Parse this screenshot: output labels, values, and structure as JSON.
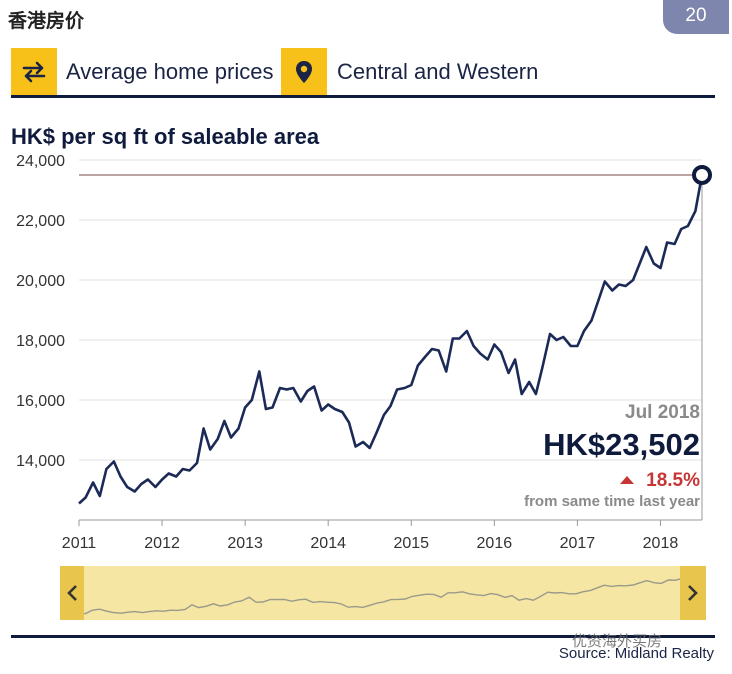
{
  "header": {
    "title": "香港房价",
    "page_number": "20"
  },
  "selectors": {
    "metric": {
      "label": "Average home prices",
      "icon": "swap-arrows-icon"
    },
    "district": {
      "label": "Central and Western",
      "icon": "map-pin-icon"
    }
  },
  "chart_title": "HK$ per sq ft of saleable area",
  "summary": {
    "date": "Jul 2018",
    "value": "HK$23,502",
    "change": "18.5%",
    "change_note": "from same time last year"
  },
  "source": "Source: Midland Realty",
  "watermark": "优资海外买房",
  "colors": {
    "line": "#1b2a57",
    "accent": "#f7c11a",
    "up_change": "#c73535",
    "navigator_bg": "#f5e6a4",
    "badge": "#7e86ad"
  },
  "chart_data": {
    "type": "line",
    "title": "HK$ per sq ft of saleable area",
    "xlabel": "",
    "ylabel": "",
    "x_ticks": [
      "2011",
      "2012",
      "2013",
      "2014",
      "2015",
      "2016",
      "2017",
      "2018"
    ],
    "y_ticks": [
      14000,
      16000,
      18000,
      20000,
      22000,
      24000
    ],
    "ylim": [
      12000,
      24000
    ],
    "xlim": [
      2011.0,
      2018.5
    ],
    "grid": true,
    "reference_line": 23502,
    "series": [
      {
        "values": [
          [
            2011.0,
            12550
          ],
          [
            2011.08,
            12750
          ],
          [
            2011.17,
            13250
          ],
          [
            2011.25,
            12800
          ],
          [
            2011.33,
            13700
          ],
          [
            2011.42,
            13950
          ],
          [
            2011.5,
            13450
          ],
          [
            2011.58,
            13100
          ],
          [
            2011.67,
            12950
          ],
          [
            2011.75,
            13200
          ],
          [
            2011.83,
            13350
          ],
          [
            2011.92,
            13100
          ],
          [
            2012.0,
            13350
          ],
          [
            2012.08,
            13550
          ],
          [
            2012.17,
            13450
          ],
          [
            2012.25,
            13700
          ],
          [
            2012.33,
            13650
          ],
          [
            2012.42,
            13900
          ],
          [
            2012.5,
            15050
          ],
          [
            2012.58,
            14350
          ],
          [
            2012.67,
            14700
          ],
          [
            2012.75,
            15300
          ],
          [
            2012.83,
            14750
          ],
          [
            2012.92,
            15050
          ],
          [
            2013.0,
            15750
          ],
          [
            2013.08,
            16000
          ],
          [
            2013.17,
            16950
          ],
          [
            2013.25,
            15700
          ],
          [
            2013.33,
            15750
          ],
          [
            2013.42,
            16400
          ],
          [
            2013.5,
            16350
          ],
          [
            2013.58,
            16400
          ],
          [
            2013.67,
            15950
          ],
          [
            2013.75,
            16300
          ],
          [
            2013.83,
            16450
          ],
          [
            2013.92,
            15650
          ],
          [
            2014.0,
            15850
          ],
          [
            2014.08,
            15700
          ],
          [
            2014.17,
            15600
          ],
          [
            2014.25,
            15250
          ],
          [
            2014.33,
            14450
          ],
          [
            2014.42,
            14600
          ],
          [
            2014.5,
            14400
          ],
          [
            2014.58,
            14900
          ],
          [
            2014.67,
            15500
          ],
          [
            2014.75,
            15800
          ],
          [
            2014.83,
            16350
          ],
          [
            2014.92,
            16400
          ],
          [
            2015.0,
            16500
          ],
          [
            2015.08,
            17150
          ],
          [
            2015.17,
            17450
          ],
          [
            2015.25,
            17700
          ],
          [
            2015.33,
            17650
          ],
          [
            2015.42,
            16950
          ],
          [
            2015.5,
            18050
          ],
          [
            2015.58,
            18050
          ],
          [
            2015.67,
            18300
          ],
          [
            2015.75,
            17800
          ],
          [
            2015.83,
            17550
          ],
          [
            2015.92,
            17350
          ],
          [
            2016.0,
            17850
          ],
          [
            2016.08,
            17600
          ],
          [
            2016.17,
            16900
          ],
          [
            2016.25,
            17350
          ],
          [
            2016.33,
            16200
          ],
          [
            2016.42,
            16600
          ],
          [
            2016.5,
            16200
          ],
          [
            2016.58,
            17100
          ],
          [
            2016.67,
            18200
          ],
          [
            2016.75,
            18000
          ],
          [
            2016.83,
            18100
          ],
          [
            2016.92,
            17800
          ],
          [
            2017.0,
            17800
          ],
          [
            2017.08,
            18300
          ],
          [
            2017.17,
            18650
          ],
          [
            2017.25,
            19300
          ],
          [
            2017.33,
            19950
          ],
          [
            2017.42,
            19650
          ],
          [
            2017.5,
            19850
          ],
          [
            2017.58,
            19800
          ],
          [
            2017.67,
            20000
          ],
          [
            2017.75,
            20550
          ],
          [
            2017.83,
            21100
          ],
          [
            2017.92,
            20550
          ],
          [
            2018.0,
            20400
          ],
          [
            2018.08,
            21250
          ],
          [
            2018.17,
            21200
          ],
          [
            2018.25,
            21700
          ],
          [
            2018.33,
            21800
          ],
          [
            2018.42,
            22300
          ],
          [
            2018.5,
            23502
          ]
        ]
      }
    ]
  }
}
